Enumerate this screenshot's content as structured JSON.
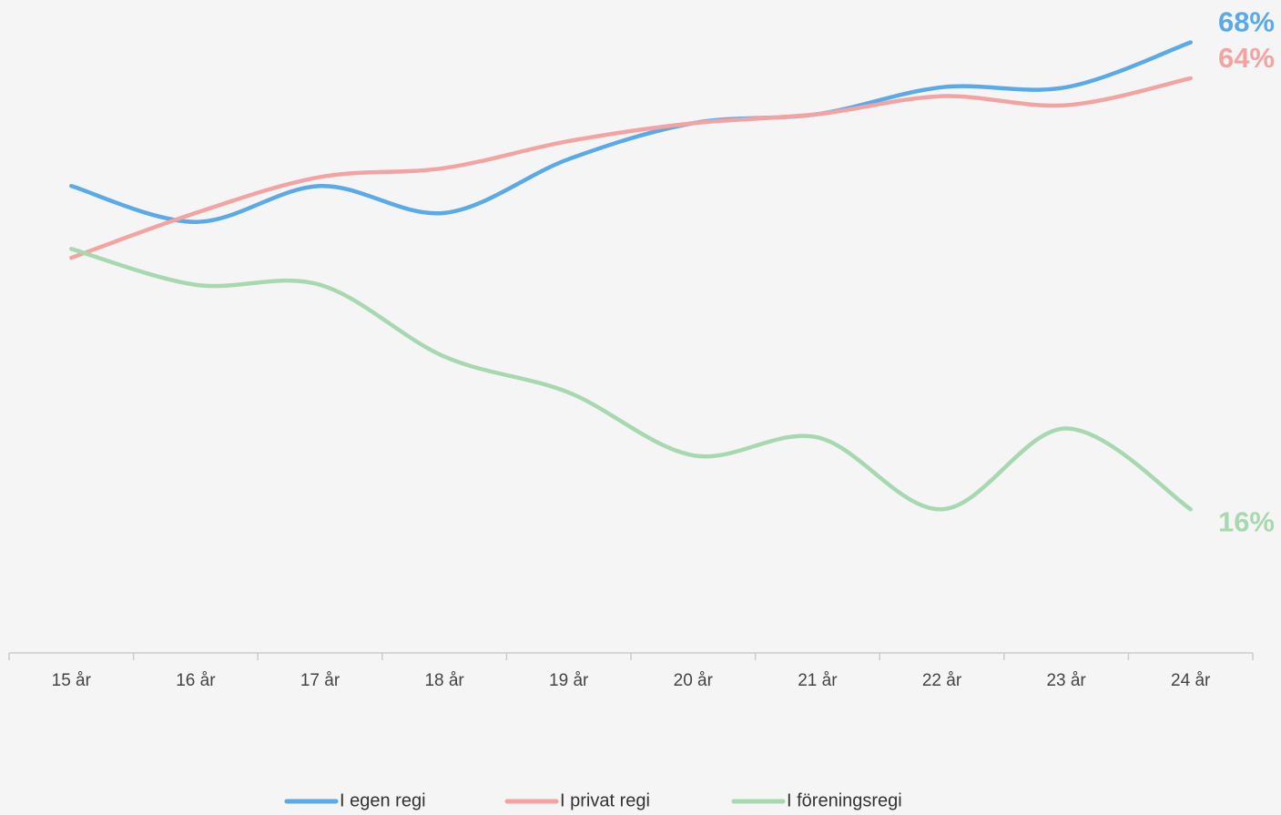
{
  "chart_data": {
    "type": "line",
    "categories": [
      "15 år",
      "16 år",
      "17 år",
      "18 år",
      "19 år",
      "20 år",
      "21 år",
      "22 år",
      "23 år",
      "24 år"
    ],
    "series": [
      {
        "name": "I egen regi",
        "color": "#5aaae8",
        "values": [
          52,
          48,
          52,
          49,
          55,
          59,
          60,
          63,
          63,
          68
        ],
        "value_labels": [
          null,
          null,
          null,
          null,
          null,
          null,
          null,
          null,
          null,
          "68%"
        ]
      },
      {
        "name": "I privat regi",
        "color": "#f4a3a3",
        "values": [
          44,
          49,
          53,
          54,
          57,
          59,
          60,
          62,
          61,
          64
        ],
        "value_labels": [
          null,
          null,
          null,
          null,
          null,
          null,
          null,
          null,
          null,
          "64%"
        ]
      },
      {
        "name": "I föreningsregi",
        "color": "#a8d8b0",
        "values": [
          45,
          41,
          41,
          33,
          29,
          22,
          24,
          16,
          25,
          16
        ],
        "value_labels": [
          null,
          null,
          null,
          null,
          null,
          null,
          null,
          null,
          null,
          "16%"
        ]
      }
    ],
    "ylim": [
      0,
      71.5
    ],
    "grid": false,
    "legend": "bottom"
  }
}
